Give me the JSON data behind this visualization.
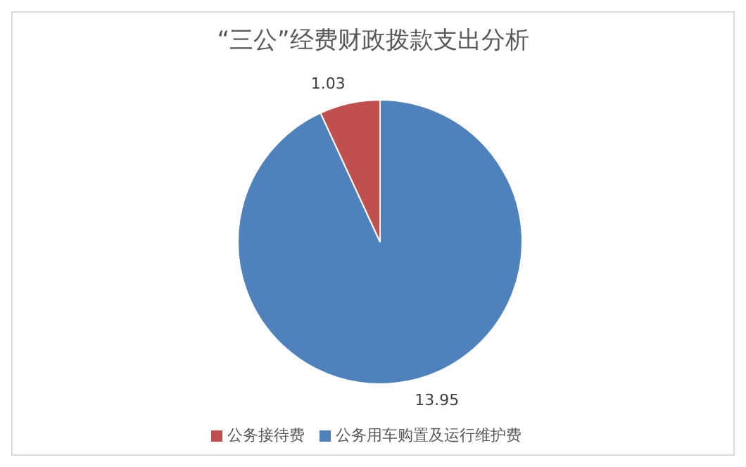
{
  "chart_data": {
    "type": "pie",
    "title": "“三公”经费财政拨款支出分析",
    "categories": [
      "公务用车购置及运行维护费",
      "公务接待费"
    ],
    "values": [
      13.95,
      1.03
    ],
    "colors": [
      "#4f81bd",
      "#c0504d"
    ],
    "data_labels": true,
    "legend": "bottom"
  }
}
